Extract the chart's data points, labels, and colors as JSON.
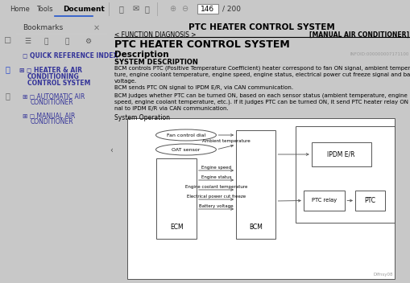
{
  "title": "PTC HEATER CONTROL SYSTEM",
  "subtitle_left": "< FUNCTION DIAGNOSIS >",
  "subtitle_right": "[MANUAL AIR CONDITIONER]",
  "section_title": "PTC HEATER CONTROL SYSTEM",
  "description_header": "Description",
  "system_desc_header": "SYSTEM DESCRIPTION",
  "body_text": [
    "BCM controls PTC (Positive Temperature Coefficient) heater correspond to fan ON signal, ambient tempera-",
    "ture, engine coolant temperature, engine speed, engine status, electrical power cut freeze signal and battery",
    "voltage.",
    "BCM sends PTC ON signal to IPDM E/R, via CAN communication.",
    "BCM judges whether PTC can be turned ON, based on each sensor status (ambient temperature, engine",
    "speed, engine coolant temperature, etc.). If it judges PTC can be turned ON, it send PTC heater relay ON sig-",
    "nal to IPDM E/R via CAN communication."
  ],
  "system_operation_label": "System Operation",
  "infoid": "INFOID:000000007171100",
  "copyright_label": "DIfnsy08",
  "toolbar_bg": "#e0e0e0",
  "sidebar_bg": "#f0f0f0",
  "panel_bg": "#f5f5f5",
  "content_bg": "#ffffff",
  "fig_bg": "#c8c8c8"
}
